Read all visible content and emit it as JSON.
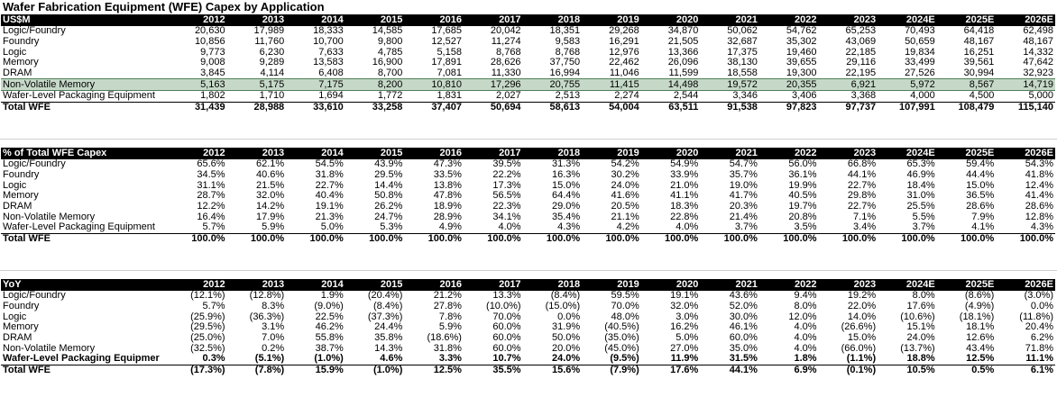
{
  "title": "Wafer Fabrication Equipment (WFE) Capex by Application",
  "years": [
    "2012",
    "2013",
    "2014",
    "2015",
    "2016",
    "2017",
    "2018",
    "2019",
    "2020",
    "2021",
    "2022",
    "2023",
    "2024E",
    "2025E",
    "2026E"
  ],
  "sections": [
    {
      "header": "US$M",
      "rows": [
        {
          "label": "Logic/Foundry",
          "level": 1,
          "values": [
            "20,630",
            "17,989",
            "18,333",
            "14,585",
            "17,685",
            "20,042",
            "18,351",
            "29,268",
            "34,870",
            "50,062",
            "54,762",
            "65,253",
            "70,493",
            "64,418",
            "62,498"
          ]
        },
        {
          "label": "Foundry",
          "level": 2,
          "values": [
            "10,856",
            "11,760",
            "10,700",
            "9,800",
            "12,527",
            "11,274",
            "9,583",
            "16,291",
            "21,505",
            "32,687",
            "35,302",
            "43,069",
            "50,659",
            "48,167",
            "48,167"
          ]
        },
        {
          "label": "Logic",
          "level": 2,
          "values": [
            "9,773",
            "6,230",
            "7,633",
            "4,785",
            "5,158",
            "8,768",
            "8,768",
            "12,976",
            "13,366",
            "17,375",
            "19,460",
            "22,185",
            "19,834",
            "16,251",
            "14,332"
          ]
        },
        {
          "label": "Memory",
          "level": 1,
          "values": [
            "9,008",
            "9,289",
            "13,583",
            "16,900",
            "17,891",
            "28,626",
            "37,750",
            "22,462",
            "26,096",
            "38,130",
            "39,655",
            "29,116",
            "33,499",
            "39,561",
            "47,642"
          ]
        },
        {
          "label": "DRAM",
          "level": 2,
          "values": [
            "3,845",
            "4,114",
            "6,408",
            "8,700",
            "7,081",
            "11,330",
            "16,994",
            "11,046",
            "11,599",
            "18,558",
            "19,300",
            "22,195",
            "27,526",
            "30,994",
            "32,923"
          ]
        },
        {
          "label": "Non-Volatile Memory",
          "level": 2,
          "highlight": true,
          "values": [
            "5,163",
            "5,175",
            "7,175",
            "8,200",
            "10,810",
            "17,296",
            "20,755",
            "11,415",
            "14,498",
            "19,572",
            "20,355",
            "6,921",
            "5,972",
            "8,567",
            "14,719"
          ]
        },
        {
          "label": "Wafer-Level Packaging Equipment",
          "level": 0,
          "values": [
            "1,802",
            "1,710",
            "1,694",
            "1,772",
            "1,831",
            "2,027",
            "2,513",
            "2,274",
            "2,544",
            "3,346",
            "3,406",
            "3,368",
            "4,000",
            "4,500",
            "5,000"
          ]
        },
        {
          "label": "Total WFE",
          "level": 0,
          "total": true,
          "values": [
            "31,439",
            "28,988",
            "33,610",
            "33,258",
            "37,407",
            "50,694",
            "58,613",
            "54,004",
            "63,511",
            "91,538",
            "97,823",
            "97,737",
            "107,991",
            "108,479",
            "115,140"
          ]
        }
      ]
    },
    {
      "header": "% of Total WFE Capex",
      "rows": [
        {
          "label": "Logic/Foundry",
          "level": 1,
          "values": [
            "65.6%",
            "62.1%",
            "54.5%",
            "43.9%",
            "47.3%",
            "39.5%",
            "31.3%",
            "54.2%",
            "54.9%",
            "54.7%",
            "56.0%",
            "66.8%",
            "65.3%",
            "59.4%",
            "54.3%"
          ]
        },
        {
          "label": "Foundry",
          "level": 2,
          "values": [
            "34.5%",
            "40.6%",
            "31.8%",
            "29.5%",
            "33.5%",
            "22.2%",
            "16.3%",
            "30.2%",
            "33.9%",
            "35.7%",
            "36.1%",
            "44.1%",
            "46.9%",
            "44.4%",
            "41.8%"
          ]
        },
        {
          "label": "Logic",
          "level": 2,
          "values": [
            "31.1%",
            "21.5%",
            "22.7%",
            "14.4%",
            "13.8%",
            "17.3%",
            "15.0%",
            "24.0%",
            "21.0%",
            "19.0%",
            "19.9%",
            "22.7%",
            "18.4%",
            "15.0%",
            "12.4%"
          ]
        },
        {
          "label": "Memory",
          "level": 1,
          "values": [
            "28.7%",
            "32.0%",
            "40.4%",
            "50.8%",
            "47.8%",
            "56.5%",
            "64.4%",
            "41.6%",
            "41.1%",
            "41.7%",
            "40.5%",
            "29.8%",
            "31.0%",
            "36.5%",
            "41.4%"
          ]
        },
        {
          "label": "DRAM",
          "level": 2,
          "values": [
            "12.2%",
            "14.2%",
            "19.1%",
            "26.2%",
            "18.9%",
            "22.3%",
            "29.0%",
            "20.5%",
            "18.3%",
            "20.3%",
            "19.7%",
            "22.7%",
            "25.5%",
            "28.6%",
            "28.6%"
          ]
        },
        {
          "label": "Non-Volatile Memory",
          "level": 2,
          "values": [
            "16.4%",
            "17.9%",
            "21.3%",
            "24.7%",
            "28.9%",
            "34.1%",
            "35.4%",
            "21.1%",
            "22.8%",
            "21.4%",
            "20.8%",
            "7.1%",
            "5.5%",
            "7.9%",
            "12.8%"
          ]
        },
        {
          "label": "Wafer-Level Packaging Equipment",
          "level": 0,
          "values": [
            "5.7%",
            "5.9%",
            "5.0%",
            "5.3%",
            "4.9%",
            "4.0%",
            "4.3%",
            "4.2%",
            "4.0%",
            "3.7%",
            "3.5%",
            "3.4%",
            "3.7%",
            "4.1%",
            "4.3%"
          ]
        },
        {
          "label": "Total WFE",
          "level": 0,
          "total": true,
          "values": [
            "100.0%",
            "100.0%",
            "100.0%",
            "100.0%",
            "100.0%",
            "100.0%",
            "100.0%",
            "100.0%",
            "100.0%",
            "100.0%",
            "100.0%",
            "100.0%",
            "100.0%",
            "100.0%",
            "100.0%"
          ]
        }
      ]
    },
    {
      "header": "YoY",
      "rows": [
        {
          "label": "Logic/Foundry",
          "level": 1,
          "values": [
            "(12.1%)",
            "(12.8%)",
            "1.9%",
            "(20.4%)",
            "21.2%",
            "13.3%",
            "(8.4%)",
            "59.5%",
            "19.1%",
            "43.6%",
            "9.4%",
            "19.2%",
            "8.0%",
            "(8.6%)",
            "(3.0%)"
          ]
        },
        {
          "label": "Foundry",
          "level": 2,
          "values": [
            "5.7%",
            "8.3%",
            "(9.0%)",
            "(8.4%)",
            "27.8%",
            "(10.0%)",
            "(15.0%)",
            "70.0%",
            "32.0%",
            "52.0%",
            "8.0%",
            "22.0%",
            "17.6%",
            "(4.9%)",
            "0.0%"
          ]
        },
        {
          "label": "Logic",
          "level": 2,
          "values": [
            "(25.9%)",
            "(36.3%)",
            "22.5%",
            "(37.3%)",
            "7.8%",
            "70.0%",
            "0.0%",
            "48.0%",
            "3.0%",
            "30.0%",
            "12.0%",
            "14.0%",
            "(10.6%)",
            "(18.1%)",
            "(11.8%)"
          ]
        },
        {
          "label": "Memory",
          "level": 1,
          "values": [
            "(29.5%)",
            "3.1%",
            "46.2%",
            "24.4%",
            "5.9%",
            "60.0%",
            "31.9%",
            "(40.5%)",
            "16.2%",
            "46.1%",
            "4.0%",
            "(26.6%)",
            "15.1%",
            "18.1%",
            "20.4%"
          ]
        },
        {
          "label": "DRAM",
          "level": 2,
          "values": [
            "(25.0%)",
            "7.0%",
            "55.8%",
            "35.8%",
            "(18.6%)",
            "60.0%",
            "50.0%",
            "(35.0%)",
            "5.0%",
            "60.0%",
            "4.0%",
            "15.0%",
            "24.0%",
            "12.6%",
            "6.2%"
          ]
        },
        {
          "label": "Non-Volatile Memory",
          "level": 2,
          "values": [
            "(32.5%)",
            "0.2%",
            "38.7%",
            "14.3%",
            "31.8%",
            "60.0%",
            "20.0%",
            "(45.0%)",
            "27.0%",
            "35.0%",
            "4.0%",
            "(66.0%)",
            "(13.7%)",
            "43.4%",
            "71.8%"
          ]
        },
        {
          "label": "Wafer-Level Packaging Equipmer",
          "level": 0,
          "bold": true,
          "values": [
            "0.3%",
            "(5.1%)",
            "(1.0%)",
            "4.6%",
            "3.3%",
            "10.7%",
            "24.0%",
            "(9.5%)",
            "11.9%",
            "31.5%",
            "1.8%",
            "(1.1%)",
            "18.8%",
            "12.5%",
            "11.1%"
          ]
        },
        {
          "label": "Total WFE",
          "level": 0,
          "total": true,
          "values": [
            "(17.3%)",
            "(7.8%)",
            "15.9%",
            "(1.0%)",
            "12.5%",
            "35.5%",
            "15.6%",
            "(7.9%)",
            "17.6%",
            "44.1%",
            "6.9%",
            "(0.1%)",
            "10.5%",
            "0.5%",
            "6.1%"
          ]
        }
      ]
    }
  ]
}
